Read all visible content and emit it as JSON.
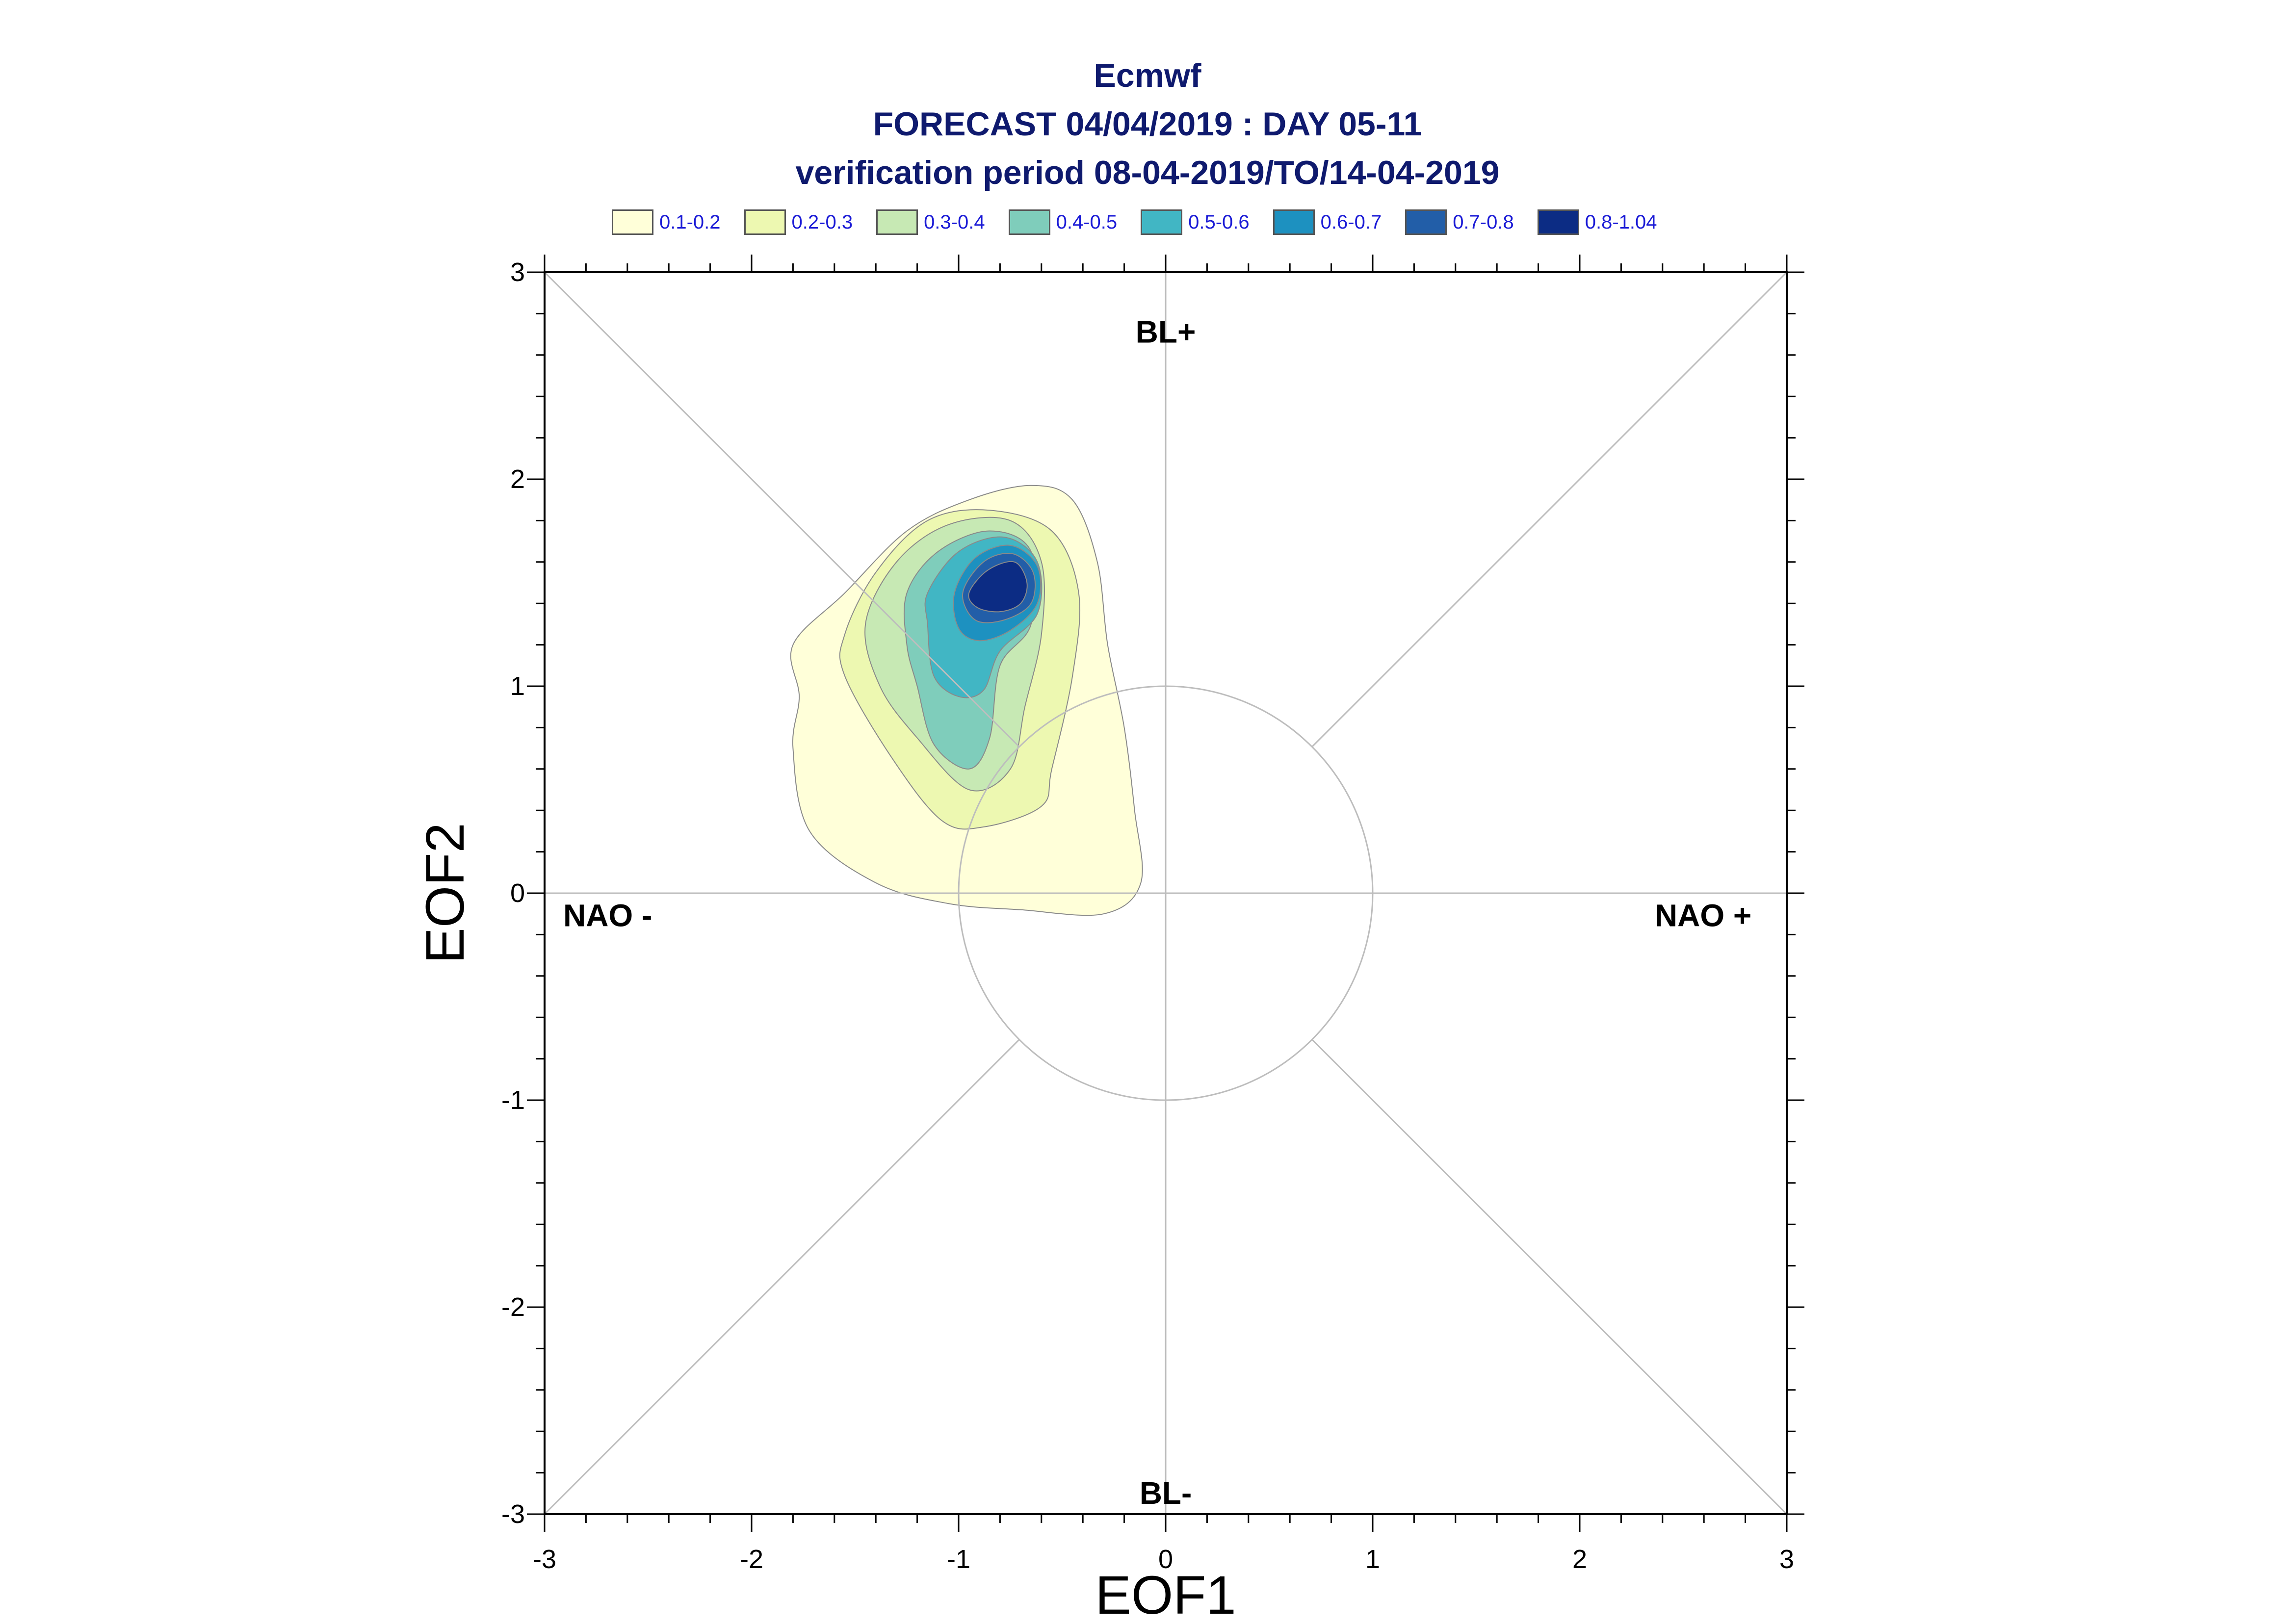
{
  "title": {
    "line1": "Ecmwf",
    "line2": "FORECAST 04/04/2019 : DAY 05-11",
    "line3": "verification period 08-04-2019/TO/14-04-2019"
  },
  "legend": [
    {
      "label": "0.1-0.2",
      "color": "#ffffd9"
    },
    {
      "label": "0.2-0.3",
      "color": "#edf8b1"
    },
    {
      "label": "0.3-0.4",
      "color": "#c7e9b4"
    },
    {
      "label": "0.4-0.5",
      "color": "#7fcdbb"
    },
    {
      "label": "0.5-0.6",
      "color": "#41b6c4"
    },
    {
      "label": "0.6-0.7",
      "color": "#1d91c0"
    },
    {
      "label": "0.7-0.8",
      "color": "#225ea8"
    },
    {
      "label": "0.8-1.04",
      "color": "#0c2c84"
    }
  ],
  "chart_data": {
    "type": "contour",
    "xlabel": "EOF1",
    "ylabel": "EOF2",
    "xlim": [
      -3,
      3
    ],
    "ylim": [
      -3,
      3
    ],
    "xticks": [
      -3,
      -2,
      -1,
      0,
      1,
      2,
      3
    ],
    "yticks": [
      -3,
      -2,
      -1,
      0,
      1,
      2,
      3
    ],
    "xtick_labels": [
      "-3",
      "-2",
      "-1",
      "0",
      "1",
      "2",
      "3"
    ],
    "ytick_labels": [
      "-3",
      "-2",
      "-1",
      "0",
      "1",
      "2",
      "3"
    ],
    "reference_circle_radius": 1,
    "regime_labels": {
      "top": "BL+",
      "bottom": "BL-",
      "left": "NAO -",
      "right": "NAO +"
    },
    "density_levels": [
      {
        "range": "0.1-0.2",
        "polygon": [
          [
            -1.8,
            1.2
          ],
          [
            -1.55,
            1.45
          ],
          [
            -1.25,
            1.75
          ],
          [
            -0.95,
            1.9
          ],
          [
            -0.65,
            1.97
          ],
          [
            -0.45,
            1.9
          ],
          [
            -0.33,
            1.6
          ],
          [
            -0.28,
            1.2
          ],
          [
            -0.2,
            0.8
          ],
          [
            -0.15,
            0.4
          ],
          [
            -0.12,
            0.05
          ],
          [
            -0.3,
            -0.1
          ],
          [
            -0.7,
            -0.08
          ],
          [
            -1.05,
            -0.05
          ],
          [
            -1.4,
            0.05
          ],
          [
            -1.72,
            0.3
          ],
          [
            -1.8,
            0.7
          ],
          [
            -1.77,
            0.95
          ]
        ]
      },
      {
        "range": "0.2-0.3",
        "polygon": [
          [
            -1.55,
            1.25
          ],
          [
            -1.4,
            1.55
          ],
          [
            -1.15,
            1.8
          ],
          [
            -0.85,
            1.85
          ],
          [
            -0.55,
            1.75
          ],
          [
            -0.42,
            1.45
          ],
          [
            -0.45,
            1.05
          ],
          [
            -0.55,
            0.6
          ],
          [
            -0.6,
            0.42
          ],
          [
            -0.88,
            0.32
          ],
          [
            -1.08,
            0.35
          ],
          [
            -1.32,
            0.65
          ],
          [
            -1.55,
            1.05
          ]
        ]
      },
      {
        "range": "0.3-0.4",
        "polygon": [
          [
            -1.45,
            1.3
          ],
          [
            -1.3,
            1.6
          ],
          [
            -1.05,
            1.78
          ],
          [
            -0.75,
            1.8
          ],
          [
            -0.6,
            1.6
          ],
          [
            -0.6,
            1.25
          ],
          [
            -0.68,
            0.9
          ],
          [
            -0.75,
            0.6
          ],
          [
            -0.95,
            0.5
          ],
          [
            -1.2,
            0.75
          ],
          [
            -1.38,
            1.0
          ]
        ]
      },
      {
        "range": "0.4-0.5",
        "polygon": [
          [
            -1.25,
            1.45
          ],
          [
            -1.1,
            1.65
          ],
          [
            -0.85,
            1.75
          ],
          [
            -0.65,
            1.65
          ],
          [
            -0.65,
            1.3
          ],
          [
            -0.8,
            1.1
          ],
          [
            -0.85,
            0.75
          ],
          [
            -0.95,
            0.6
          ],
          [
            -1.12,
            0.72
          ],
          [
            -1.2,
            1.0
          ],
          [
            -1.25,
            1.2
          ]
        ]
      },
      {
        "range": "0.5-0.6",
        "polygon": [
          [
            -1.15,
            1.45
          ],
          [
            -1.0,
            1.65
          ],
          [
            -0.78,
            1.72
          ],
          [
            -0.62,
            1.6
          ],
          [
            -0.62,
            1.35
          ],
          [
            -0.8,
            1.17
          ],
          [
            -0.88,
            0.98
          ],
          [
            -1.0,
            0.95
          ],
          [
            -1.12,
            1.05
          ],
          [
            -1.15,
            1.3
          ]
        ]
      },
      {
        "range": "0.6-0.7",
        "polygon": [
          [
            -1.02,
            1.45
          ],
          [
            -0.92,
            1.62
          ],
          [
            -0.75,
            1.68
          ],
          [
            -0.62,
            1.58
          ],
          [
            -0.62,
            1.4
          ],
          [
            -0.75,
            1.27
          ],
          [
            -0.9,
            1.22
          ],
          [
            -1.0,
            1.28
          ]
        ]
      },
      {
        "range": "0.7-0.8",
        "polygon": [
          [
            -0.98,
            1.45
          ],
          [
            -0.88,
            1.6
          ],
          [
            -0.74,
            1.64
          ],
          [
            -0.64,
            1.55
          ],
          [
            -0.65,
            1.4
          ],
          [
            -0.78,
            1.32
          ],
          [
            -0.92,
            1.32
          ]
        ]
      },
      {
        "range": "0.8-1.04",
        "polygon": [
          [
            -0.95,
            1.45
          ],
          [
            -0.86,
            1.56
          ],
          [
            -0.73,
            1.6
          ],
          [
            -0.67,
            1.5
          ],
          [
            -0.7,
            1.4
          ],
          [
            -0.8,
            1.36
          ],
          [
            -0.91,
            1.38
          ]
        ]
      }
    ]
  }
}
